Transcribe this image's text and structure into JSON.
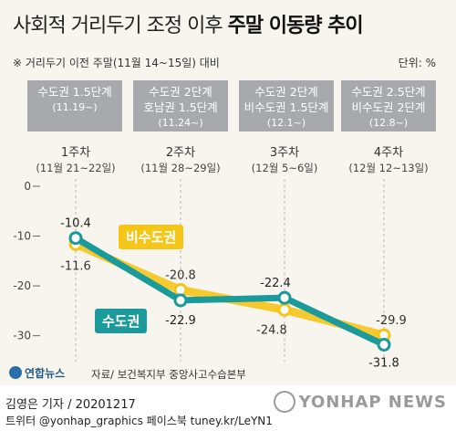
{
  "header": {
    "title_plain": "사회적 거리두기 조정 이후",
    "title_bold": "주말 이동량 추이",
    "note": "※ 거리두기 이전 주말(11월 14~15일) 대비",
    "unit": "단위: %"
  },
  "phases": [
    {
      "line1": "수도권 1.5단계",
      "line2": "",
      "date": "(11.19~)"
    },
    {
      "line1": "수도권 2단계",
      "line2": "호남권 1.5단계",
      "date": "(11.24~)"
    },
    {
      "line1": "수도권 2단계",
      "line2": "비수도권 1.5단계",
      "date": "(12.1~)"
    },
    {
      "line1": "수도권 2.5단계",
      "line2": "비수도권 2단계",
      "date": "(12.8~)"
    }
  ],
  "weeks": [
    {
      "label": "1주차",
      "range": "(11월 21~22일)"
    },
    {
      "label": "2주차",
      "range": "(11월 28~29일)"
    },
    {
      "label": "3주차",
      "range": "(12월 5~6일)"
    },
    {
      "label": "4주차",
      "range": "(12월 12~13일)"
    }
  ],
  "chart_data": {
    "type": "line",
    "categories": [
      "1주차",
      "2주차",
      "3주차",
      "4주차"
    ],
    "series": [
      {
        "name": "비수도권",
        "values": [
          -11.6,
          -20.8,
          -24.8,
          -29.9
        ],
        "color": "#f5c518"
      },
      {
        "name": "수도권",
        "values": [
          -10.4,
          -22.9,
          -22.4,
          -31.8
        ],
        "color": "#1a9a9a"
      }
    ],
    "ylim": [
      -33,
      0
    ],
    "yticks": [
      0,
      -10,
      -20,
      -30
    ],
    "grid": "dashed-vertical"
  },
  "labels": {
    "region_outside": "비수도권",
    "region_capital": "수도권",
    "outside_values": [
      "-11.6",
      "-20.8",
      "-24.8",
      "-29.9"
    ],
    "capital_values": [
      "-10.4",
      "-22.9",
      "-22.4",
      "-31.8"
    ]
  },
  "source": "자료/ 보건복지부 중앙사고수습본부",
  "logo": "연합뉴스",
  "footer": {
    "reporter": "김영은 기자 / 20201217",
    "social": "트위터 @yonhap_graphics  페이스북 tuney.kr/LeYN1"
  },
  "watermark": "YONHAP NEWS"
}
